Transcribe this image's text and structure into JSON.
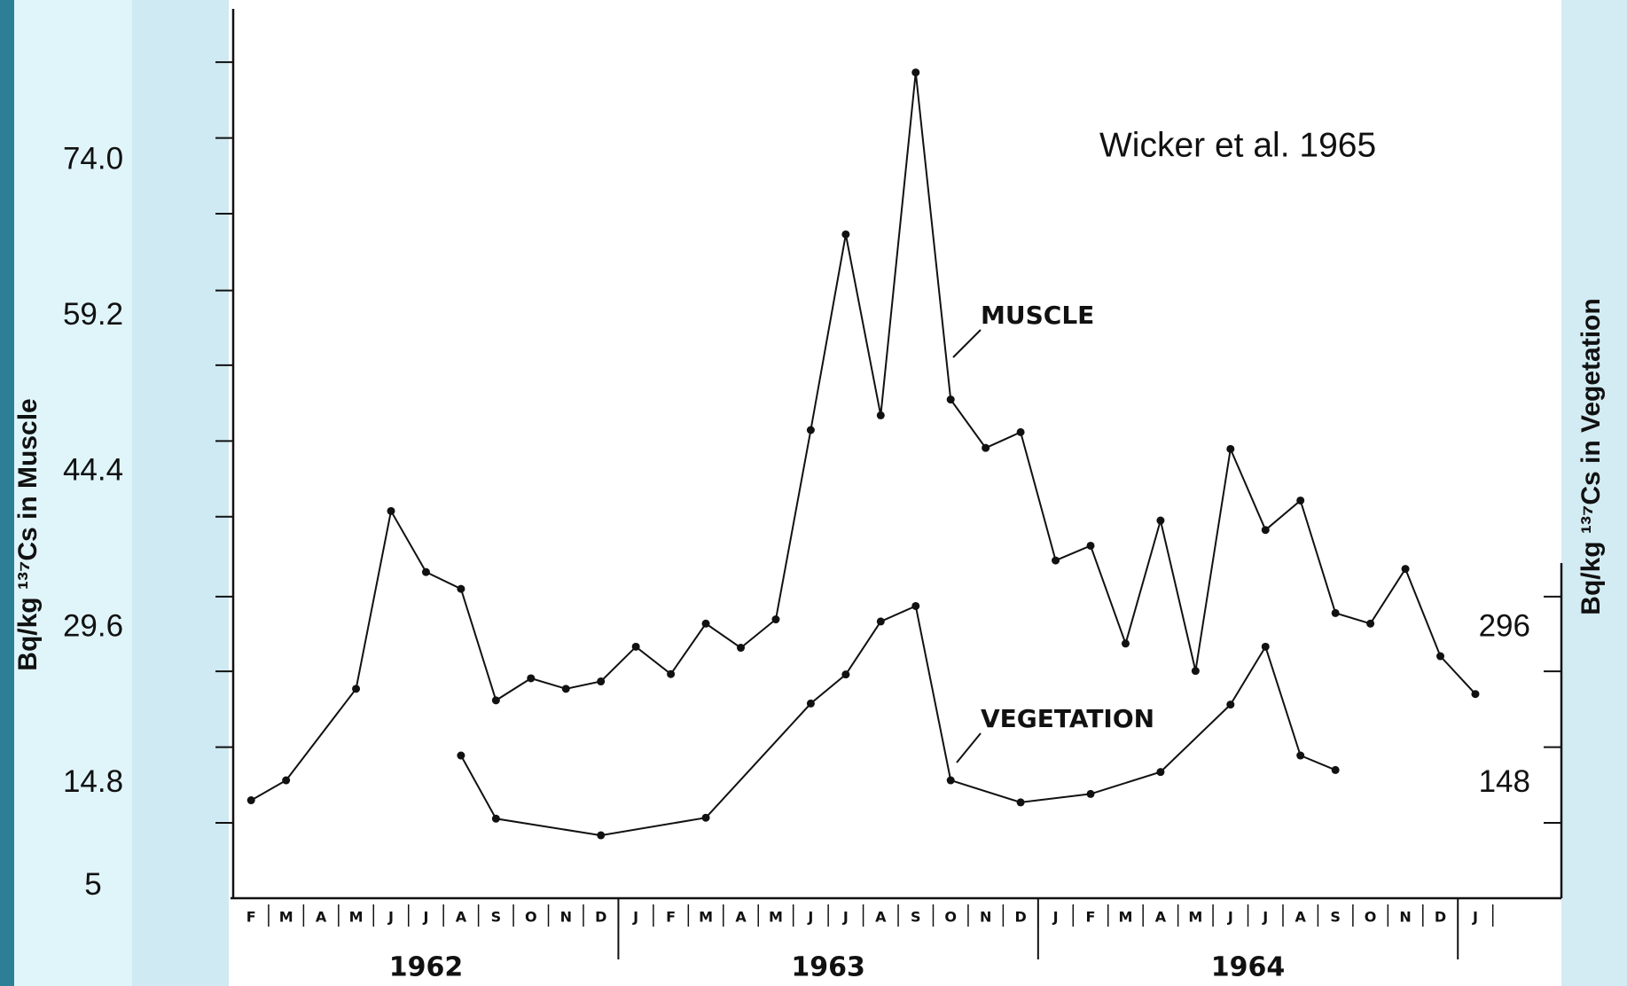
{
  "chart_data": {
    "type": "line",
    "annotations": [
      "Wicker et al. 1965",
      "MUSCLE",
      "VEGETATION"
    ],
    "ylabel": "Bq/kg ¹³⁷Cs in Muscle",
    "y2label": "Bq/kg ¹³⁷Cs in Vegetation",
    "categories": [
      "F",
      "M",
      "A",
      "M",
      "J",
      "J",
      "A",
      "S",
      "O",
      "N",
      "D",
      "J",
      "F",
      "M",
      "A",
      "M",
      "J",
      "J",
      "A",
      "S",
      "O",
      "N",
      "D",
      "J",
      "F",
      "M",
      "A",
      "M",
      "J",
      "J",
      "A",
      "S",
      "O",
      "N",
      "D",
      "J"
    ],
    "years": [
      "1962",
      "1963",
      "1964"
    ],
    "series": [
      {
        "name": "MUSCLE",
        "color": "#111111",
        "values": [
          13.2,
          15.1,
          null,
          23.8,
          40.7,
          34.9,
          33.3,
          22.7,
          24.8,
          23.8,
          24.5,
          27.8,
          25.2,
          30.0,
          27.7,
          30.4,
          48.4,
          67.0,
          49.8,
          82.4,
          51.3,
          46.7,
          48.2,
          36.0,
          37.4,
          28.1,
          39.8,
          25.5,
          46.6,
          38.9,
          41.7,
          31.0,
          30.0,
          35.2,
          26.9,
          23.3
        ]
      },
      {
        "name": "VEGETATION",
        "color": "#111111",
        "axis": "y2",
        "values": [
          null,
          null,
          null,
          null,
          null,
          null,
          174.6,
          114.5,
          null,
          null,
          98.7,
          null,
          null,
          115.4,
          null,
          null,
          224,
          251.6,
          302,
          316.7,
          151,
          null,
          130,
          null,
          138,
          null,
          158.9,
          null,
          223,
          278,
          174.6,
          160.8,
          null,
          null,
          null,
          null
        ]
      }
    ],
    "ylim": [
      3.85,
      88.3
    ],
    "yticks": [
      {
        "value": 74,
        "label": "74.0"
      },
      59.2,
      44.4,
      29.6,
      14.8,
      5
    ],
    "yticks_minor": [
      11.05,
      18.25,
      25.46,
      32.56,
      40.16,
      47.36,
      54.56,
      61.67,
      68.97,
      76.17,
      83.37
    ],
    "y2lim": [
      38.5,
      883
    ],
    "y2ticks": [
      296,
      148
    ],
    "y2ticks_minor": [
      110.5,
      182.5,
      254.6,
      325.6
    ]
  }
}
